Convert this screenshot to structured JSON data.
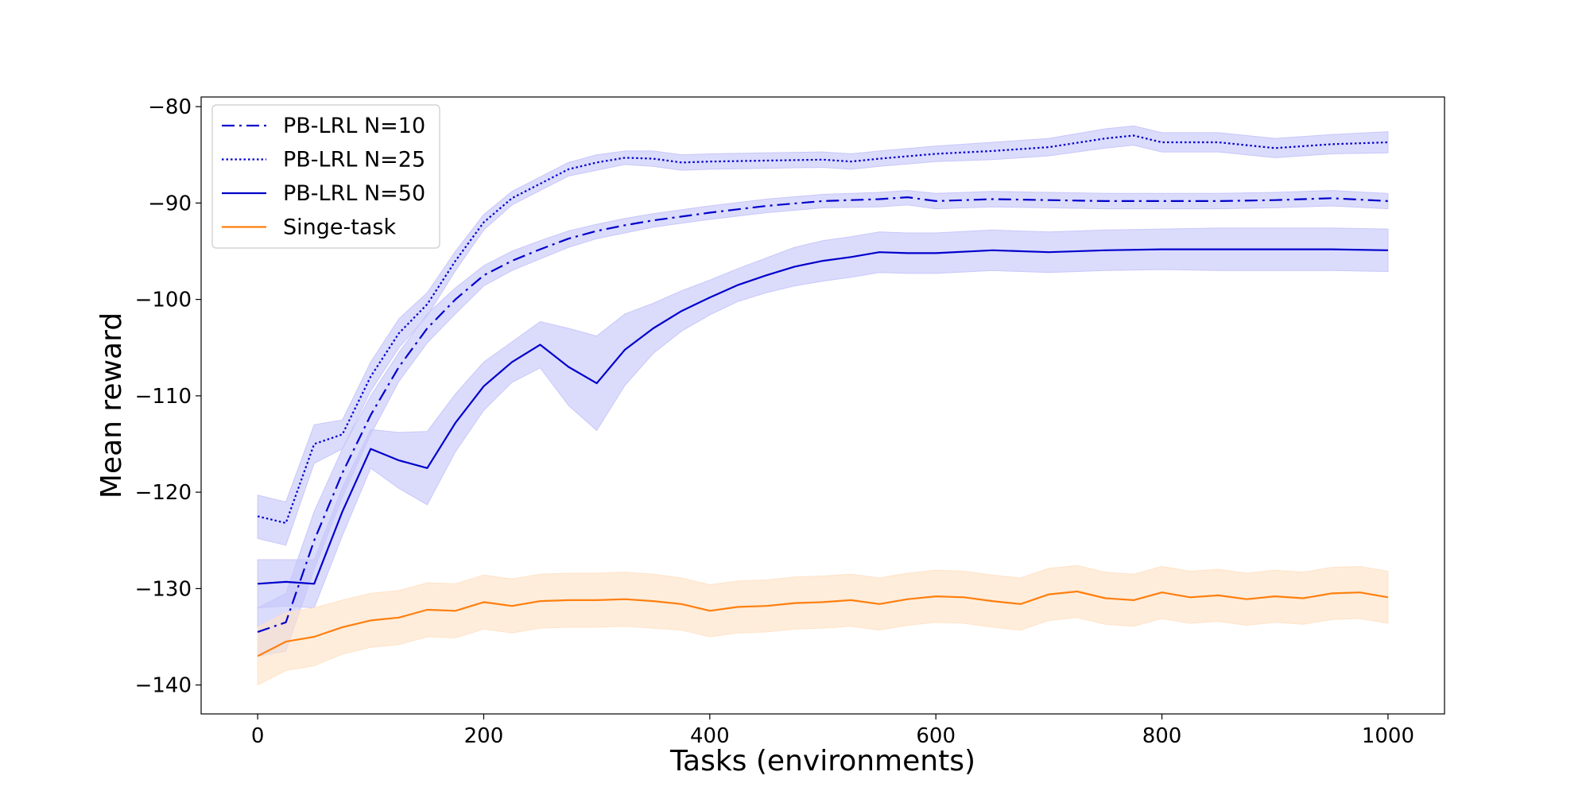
{
  "chart_data": {
    "type": "line",
    "title": "",
    "xlabel": "Tasks (environments)",
    "ylabel": "Mean reward",
    "xlim": [
      -50,
      1050
    ],
    "ylim": [
      -143,
      -79
    ],
    "xticks": [
      0,
      200,
      400,
      600,
      800,
      1000
    ],
    "yticks": [
      -80,
      -90,
      -100,
      -110,
      -120,
      -130,
      -140
    ],
    "xtick_labels": [
      "0",
      "200",
      "400",
      "600",
      "800",
      "1000"
    ],
    "ytick_labels": [
      "−80",
      "−90",
      "−100",
      "−110",
      "−120",
      "−130",
      "−140"
    ],
    "grid": false,
    "legend_position": "top-left",
    "series": [
      {
        "name": "PB-LRL N=10",
        "color": "#0000cc",
        "line_style": "dashdot",
        "band_color": "#c8c8fa",
        "x": [
          0,
          25,
          50,
          75,
          100,
          125,
          150,
          175,
          200,
          225,
          250,
          275,
          300,
          325,
          350,
          375,
          400,
          450,
          500,
          550,
          575,
          600,
          650,
          700,
          750,
          800,
          850,
          900,
          950,
          1000
        ],
        "y": [
          -134.5,
          -133.5,
          -125,
          -118,
          -112,
          -107,
          -103,
          -100,
          -97.5,
          -96,
          -94.8,
          -93.7,
          -92.9,
          -92.3,
          -91.8,
          -91.4,
          -91,
          -90.3,
          -89.8,
          -89.6,
          -89.4,
          -89.8,
          -89.6,
          -89.7,
          -89.8,
          -89.8,
          -89.8,
          -89.7,
          -89.5,
          -89.8
        ],
        "upper": [
          -132,
          -130.5,
          -122,
          -115.5,
          -110,
          -105.5,
          -101.5,
          -98.8,
          -96.5,
          -95,
          -93.9,
          -92.9,
          -92.2,
          -91.6,
          -91.1,
          -90.7,
          -90.3,
          -89.6,
          -89.1,
          -88.9,
          -88.7,
          -89,
          -88.8,
          -88.9,
          -89,
          -89,
          -89,
          -88.9,
          -88.7,
          -89
        ],
        "lower": [
          -137,
          -136.5,
          -128,
          -120.5,
          -114,
          -108.5,
          -104.5,
          -101.5,
          -98.6,
          -97,
          -95.8,
          -94.6,
          -93.7,
          -93.1,
          -92.5,
          -92.1,
          -91.7,
          -91,
          -90.5,
          -90.4,
          -90.2,
          -90.6,
          -90.4,
          -90.5,
          -90.6,
          -90.6,
          -90.6,
          -90.5,
          -90.3,
          -90.6
        ]
      },
      {
        "name": "PB-LRL N=25",
        "color": "#0000cc",
        "line_style": "dotted",
        "band_color": "#c8c8fa",
        "x": [
          0,
          25,
          50,
          75,
          100,
          125,
          150,
          175,
          200,
          225,
          250,
          275,
          300,
          325,
          350,
          375,
          400,
          450,
          500,
          525,
          550,
          600,
          650,
          700,
          750,
          775,
          800,
          850,
          900,
          950,
          1000
        ],
        "y": [
          -122.5,
          -123.2,
          -115,
          -114,
          -108,
          -103.5,
          -100.5,
          -96,
          -92,
          -89.5,
          -88,
          -86.5,
          -85.8,
          -85.3,
          -85.4,
          -85.8,
          -85.7,
          -85.6,
          -85.5,
          -85.7,
          -85.4,
          -84.9,
          -84.6,
          -84.2,
          -83.3,
          -83,
          -83.7,
          -83.7,
          -84.3,
          -83.9,
          -83.7
        ],
        "upper": [
          -120.3,
          -121,
          -113,
          -112.5,
          -106.5,
          -102,
          -99.3,
          -95,
          -91.2,
          -88.8,
          -87.3,
          -85.8,
          -85,
          -84.6,
          -84.6,
          -85,
          -84.9,
          -84.8,
          -84.7,
          -84.9,
          -84.6,
          -84.1,
          -83.7,
          -83.3,
          -82.3,
          -82,
          -82.7,
          -82.7,
          -83.3,
          -82.9,
          -82.6
        ],
        "lower": [
          -124.8,
          -125.5,
          -117,
          -115.5,
          -109.5,
          -105,
          -101.7,
          -97,
          -92.8,
          -90.2,
          -88.7,
          -87.2,
          -86.6,
          -86,
          -86.2,
          -86.6,
          -86.5,
          -86.4,
          -86.3,
          -86.5,
          -86.2,
          -85.7,
          -85.5,
          -85.1,
          -84.3,
          -84,
          -84.7,
          -84.7,
          -85.3,
          -84.9,
          -84.8
        ]
      },
      {
        "name": "PB-LRL N=50",
        "color": "#0000cc",
        "line_style": "solid",
        "band_color": "#c8c8fa",
        "x": [
          0,
          25,
          50,
          75,
          100,
          125,
          150,
          175,
          200,
          225,
          250,
          275,
          300,
          325,
          350,
          375,
          400,
          425,
          450,
          475,
          500,
          525,
          550,
          575,
          600,
          650,
          700,
          750,
          800,
          850,
          900,
          950,
          1000
        ],
        "y": [
          -129.5,
          -129.3,
          -129.5,
          -122,
          -115.5,
          -116.7,
          -117.5,
          -112.8,
          -109,
          -106.5,
          -104.7,
          -107,
          -108.7,
          -105.2,
          -103,
          -101.2,
          -99.8,
          -98.5,
          -97.5,
          -96.6,
          -96,
          -95.6,
          -95.1,
          -95.2,
          -95.2,
          -94.9,
          -95.1,
          -94.9,
          -94.8,
          -94.8,
          -94.8,
          -94.8,
          -94.9
        ],
        "upper": [
          -127,
          -127,
          -127,
          -119.5,
          -113.5,
          -113.8,
          -113.7,
          -109.8,
          -106.5,
          -104.4,
          -102.3,
          -103,
          -103.8,
          -101.5,
          -100.4,
          -99.1,
          -98,
          -96.8,
          -95.7,
          -94.6,
          -93.9,
          -93.5,
          -93,
          -93.1,
          -93.1,
          -92.8,
          -93,
          -92.8,
          -92.7,
          -92.6,
          -92.6,
          -92.6,
          -92.7
        ],
        "lower": [
          -132,
          -131.8,
          -132,
          -124.5,
          -117.5,
          -119.6,
          -121.3,
          -115.8,
          -111.5,
          -108.6,
          -107.1,
          -111,
          -113.6,
          -108.9,
          -105.6,
          -103.3,
          -101.6,
          -100.2,
          -99.3,
          -98.6,
          -98.1,
          -97.7,
          -97.2,
          -97.3,
          -97.3,
          -97,
          -97.2,
          -97,
          -96.9,
          -97,
          -97,
          -97,
          -97.1
        ]
      },
      {
        "name": "Singe-task",
        "color": "#ff7f0e",
        "line_style": "solid",
        "band_color": "#ffe3c8",
        "x": [
          0,
          25,
          50,
          75,
          100,
          125,
          150,
          175,
          200,
          225,
          250,
          275,
          300,
          325,
          350,
          375,
          400,
          425,
          450,
          475,
          500,
          525,
          550,
          575,
          600,
          625,
          650,
          675,
          700,
          725,
          750,
          775,
          800,
          825,
          850,
          875,
          900,
          925,
          950,
          975,
          1000
        ],
        "y": [
          -137,
          -135.5,
          -135,
          -134,
          -133.3,
          -133,
          -132.2,
          -132.3,
          -131.4,
          -131.8,
          -131.3,
          -131.2,
          -131.2,
          -131.1,
          -131.3,
          -131.6,
          -132.3,
          -131.9,
          -131.8,
          -131.5,
          -131.4,
          -131.2,
          -131.6,
          -131.1,
          -130.8,
          -130.9,
          -131.3,
          -131.6,
          -130.6,
          -130.3,
          -131,
          -131.2,
          -130.4,
          -130.9,
          -130.7,
          -131.1,
          -130.8,
          -131,
          -130.5,
          -130.4,
          -130.9
        ],
        "upper": [
          -134,
          -132.5,
          -132,
          -131.2,
          -130.5,
          -130.2,
          -129.4,
          -129.5,
          -128.6,
          -129,
          -128.5,
          -128.4,
          -128.4,
          -128.3,
          -128.5,
          -128.9,
          -129.6,
          -129.2,
          -129.1,
          -128.8,
          -128.7,
          -128.5,
          -128.9,
          -128.4,
          -128.1,
          -128.2,
          -128.6,
          -128.9,
          -127.9,
          -127.6,
          -128.3,
          -128.5,
          -127.7,
          -128.2,
          -128,
          -128.4,
          -128.1,
          -128.3,
          -127.8,
          -127.7,
          -128.2
        ],
        "lower": [
          -140,
          -138.5,
          -138,
          -136.8,
          -136.1,
          -135.8,
          -135,
          -135.1,
          -134.2,
          -134.6,
          -134.1,
          -134,
          -134,
          -133.9,
          -134.1,
          -134.3,
          -135,
          -134.6,
          -134.5,
          -134.2,
          -134.1,
          -133.9,
          -134.3,
          -133.8,
          -133.5,
          -133.6,
          -134,
          -134.3,
          -133.3,
          -133,
          -133.7,
          -133.9,
          -133.1,
          -133.6,
          -133.4,
          -133.8,
          -133.5,
          -133.7,
          -133.2,
          -133.1,
          -133.6
        ]
      }
    ]
  }
}
